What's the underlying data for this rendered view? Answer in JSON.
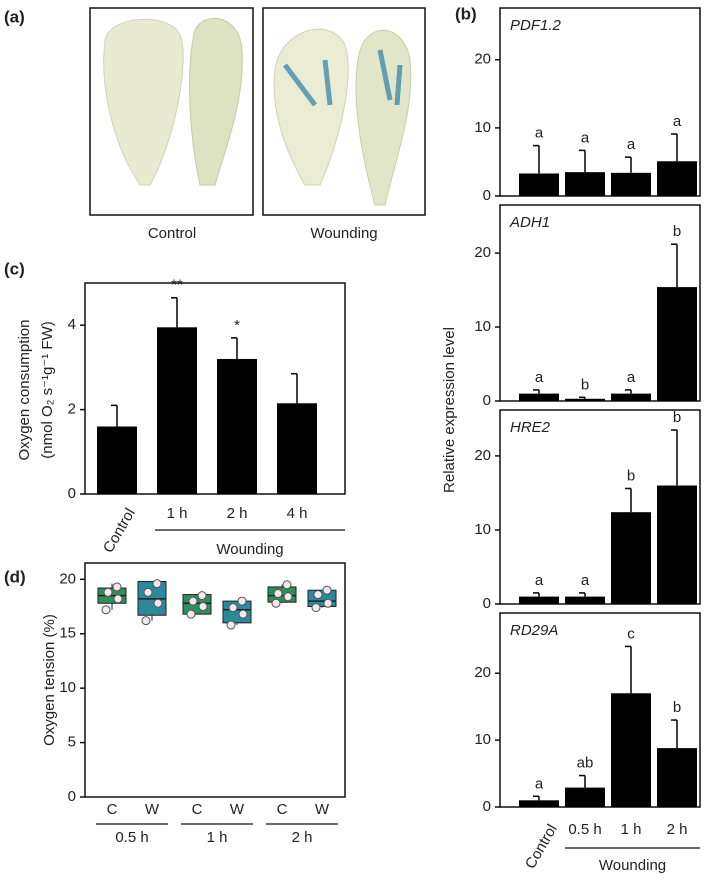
{
  "panel_a": {
    "panel": "(a)",
    "captions": [
      "Control",
      "Wounding"
    ]
  },
  "chart_data": [
    {
      "type": "bar",
      "panel": "(b)",
      "title": "PDF1.2",
      "ylabel": "Relative expression level",
      "color": "#000000",
      "values": [
        3.3,
        3.5,
        3.4,
        5.1
      ],
      "errors": [
        4.1,
        3.2,
        2.3,
        4.0
      ],
      "letters": [
        "a",
        "a",
        "a",
        "a"
      ],
      "ylim": [
        0,
        27.6
      ],
      "yticks": [
        0,
        10,
        20
      ]
    },
    {
      "type": "bar",
      "title": "ADH1",
      "color": "#000000",
      "values": [
        1.0,
        0.3,
        1.0,
        15.4
      ],
      "errors": [
        0.5,
        0.2,
        0.5,
        5.8
      ],
      "letters": [
        "a",
        "b",
        "a",
        "b"
      ],
      "ylim": [
        0,
        26.5
      ],
      "yticks": [
        0,
        10,
        20
      ]
    },
    {
      "type": "bar",
      "title": "HRE2",
      "color": "#000000",
      "values": [
        1.0,
        1.0,
        12.4,
        16.0
      ],
      "errors": [
        0.5,
        0.5,
        3.2,
        7.5
      ],
      "letters": [
        "a",
        "a",
        "b",
        "b"
      ],
      "ylim": [
        0,
        26.2
      ],
      "yticks": [
        0,
        10,
        20
      ]
    },
    {
      "type": "bar",
      "title": "RD29A",
      "color": "#000000",
      "categories": [
        "Control",
        "0.5 h",
        "1 h",
        "2 h"
      ],
      "group_label": "Wounding",
      "values": [
        1.0,
        2.9,
        17.0,
        8.8
      ],
      "errors": [
        0.6,
        1.8,
        7.0,
        4.2
      ],
      "letters": [
        "a",
        "ab",
        "c",
        "b"
      ],
      "ylim": [
        0,
        29
      ],
      "yticks": [
        0,
        10,
        20
      ]
    },
    {
      "type": "bar",
      "panel": "(c)",
      "ylabel": [
        "Oxygen consumption",
        "(nmol O₂ s⁻¹g⁻¹ FW)"
      ],
      "color": "#000000",
      "categories": [
        "Control",
        "1 h",
        "2 h",
        "4 h"
      ],
      "group_label": "Wounding",
      "values": [
        1.6,
        3.95,
        3.2,
        2.15
      ],
      "errors": [
        0.5,
        0.7,
        0.5,
        0.7
      ],
      "letters": [
        null,
        "**",
        "*",
        null
      ],
      "ylim": [
        0,
        5
      ],
      "yticks": [
        0,
        2,
        4
      ]
    },
    {
      "type": "box",
      "panel": "(d)",
      "ylabel": "Oxygen tension (%)",
      "groups": [
        "0.5 h",
        "1 h",
        "2 h"
      ],
      "boxes": [
        {
          "label": "C",
          "color": "#2f8f5b",
          "min": 17.2,
          "q1": 17.8,
          "median": 18.5,
          "q3": 19.2,
          "max": 19.6,
          "points": [
            17.2,
            18.2,
            18.8,
            19.3
          ]
        },
        {
          "label": "W",
          "color": "#2a8a9a",
          "min": 16.2,
          "q1": 16.7,
          "median": 18.2,
          "q3": 19.8,
          "max": 19.8,
          "points": [
            16.2,
            17.8,
            18.8,
            19.6
          ]
        },
        {
          "label": "C",
          "color": "#2f8f5b",
          "min": 16.8,
          "q1": 16.8,
          "median": 17.8,
          "q3": 18.6,
          "max": 18.6,
          "points": [
            16.8,
            17.5,
            18.0,
            18.5
          ]
        },
        {
          "label": "W",
          "color": "#2a8a9a",
          "min": 15.8,
          "q1": 16.0,
          "median": 17.2,
          "q3": 18.0,
          "max": 18.0,
          "points": [
            15.8,
            16.8,
            17.4,
            18.0
          ]
        },
        {
          "label": "C",
          "color": "#2f8f5b",
          "min": 17.8,
          "q1": 17.9,
          "median": 18.5,
          "q3": 19.3,
          "max": 19.5,
          "points": [
            17.8,
            18.4,
            18.7,
            19.5
          ]
        },
        {
          "label": "W",
          "color": "#2a8a9a",
          "min": 17.4,
          "q1": 17.5,
          "median": 18.0,
          "q3": 19.0,
          "max": 19.0,
          "points": [
            17.4,
            17.8,
            18.6,
            19.0
          ]
        }
      ],
      "ylim": [
        0,
        21.5
      ],
      "yticks": [
        0,
        5,
        10,
        15,
        20
      ]
    }
  ]
}
